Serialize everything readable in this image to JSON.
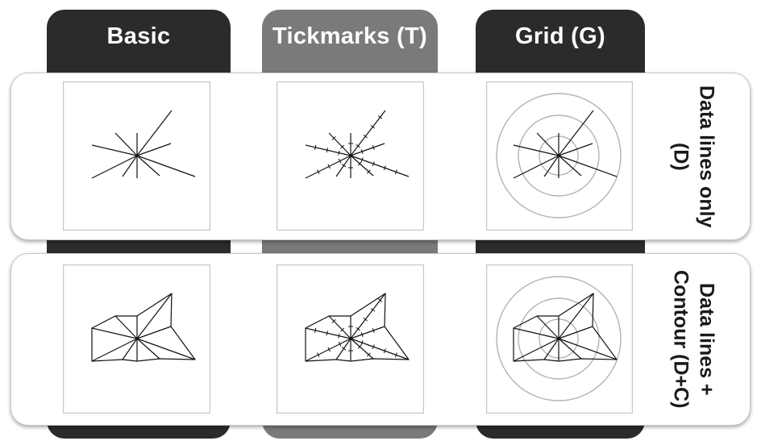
{
  "columns": [
    {
      "label": "Basic",
      "tone": "#2b2b2b"
    },
    {
      "label": "Tickmarks (T)",
      "tone": "#7a7a7a"
    },
    {
      "label": "Grid (G)",
      "tone": "#2b2b2b"
    }
  ],
  "rows": [
    {
      "label": "Data lines only (D)"
    },
    {
      "label": "Data lines + Contour (D+C)"
    }
  ],
  "colors": {
    "panel_border": "#c8c8c8",
    "data_line": "#111111",
    "grid_circle": "#b3b3b3",
    "card_border": "#c7c7c7"
  }
}
